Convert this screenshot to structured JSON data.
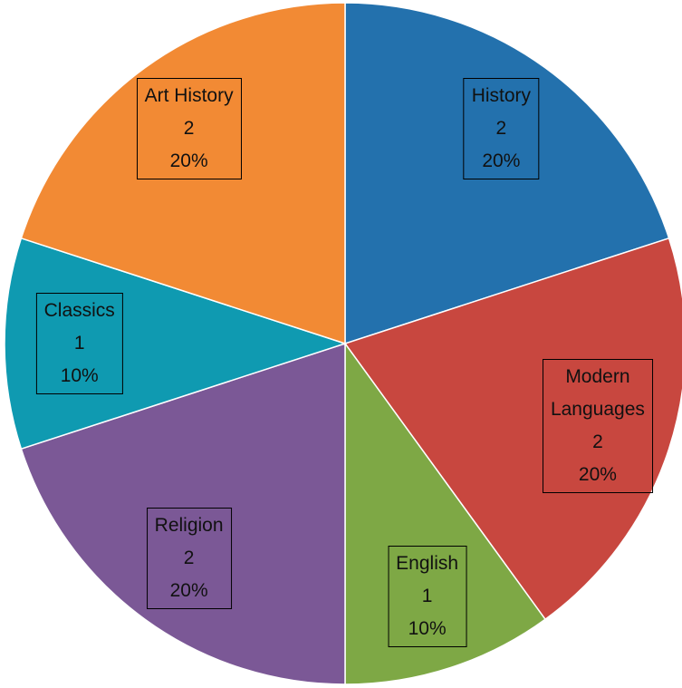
{
  "chart_data": {
    "type": "pie",
    "categories": [
      "History",
      "Modern Languages",
      "English",
      "Religion",
      "Classics",
      "Art History"
    ],
    "values": [
      2,
      2,
      1,
      2,
      1,
      2
    ],
    "percent_labels": [
      "20%",
      "20%",
      "10%",
      "20%",
      "10%",
      "20%"
    ],
    "colors": [
      "#2371ad",
      "#c8473f",
      "#7ea845",
      "#7b5896",
      "#0f9ab1",
      "#f28a34"
    ]
  }
}
